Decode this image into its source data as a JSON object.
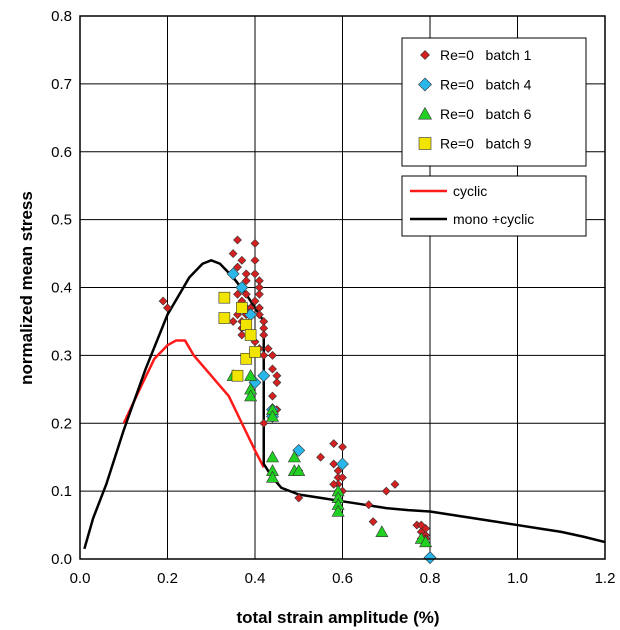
{
  "chart_data": {
    "type": "scatter",
    "xlabel": "total strain amplitude (%)",
    "ylabel": "normalized mean stress",
    "xlim": [
      0,
      1.2
    ],
    "ylim": [
      0,
      0.8
    ],
    "xticks": [
      0.0,
      0.2,
      0.4,
      0.6,
      0.8,
      1.0,
      1.2
    ],
    "yticks": [
      0.0,
      0.1,
      0.2,
      0.3,
      0.4,
      0.5,
      0.6,
      0.7,
      0.8
    ],
    "xtick_labels": [
      "0.0",
      "0.2",
      "0.4",
      "0.6",
      "0.8",
      "1.0",
      "1.2"
    ],
    "ytick_labels": [
      "0.0",
      "0.1",
      "0.2",
      "0.3",
      "0.4",
      "0.5",
      "0.6",
      "0.7",
      "0.8"
    ],
    "grid": true,
    "legend_position": "top-right",
    "scatter_series": [
      {
        "name": "Re=0   batch 1",
        "marker": "diamond",
        "color": "#d42020",
        "x": [
          0.19,
          0.2,
          0.35,
          0.36,
          0.36,
          0.37,
          0.37,
          0.37,
          0.38,
          0.38,
          0.38,
          0.38,
          0.36,
          0.35,
          0.37,
          0.36,
          0.37,
          0.37,
          0.38,
          0.39,
          0.4,
          0.4,
          0.4,
          0.41,
          0.41,
          0.41,
          0.4,
          0.41,
          0.41,
          0.42,
          0.42,
          0.42,
          0.4,
          0.41,
          0.42,
          0.43,
          0.44,
          0.44,
          0.45,
          0.45,
          0.44,
          0.45,
          0.44,
          0.42,
          0.5,
          0.5,
          0.55,
          0.58,
          0.58,
          0.59,
          0.59,
          0.6,
          0.6,
          0.59,
          0.58,
          0.6,
          0.59,
          0.66,
          0.67,
          0.7,
          0.72,
          0.77,
          0.78,
          0.78,
          0.79,
          0.79,
          0.78,
          0.79
        ],
        "y": [
          0.38,
          0.37,
          0.45,
          0.47,
          0.43,
          0.44,
          0.4,
          0.38,
          0.42,
          0.41,
          0.39,
          0.37,
          0.36,
          0.35,
          0.34,
          0.39,
          0.33,
          0.35,
          0.36,
          0.37,
          0.465,
          0.44,
          0.42,
          0.41,
          0.4,
          0.39,
          0.38,
          0.37,
          0.36,
          0.35,
          0.34,
          0.33,
          0.32,
          0.31,
          0.3,
          0.31,
          0.3,
          0.28,
          0.27,
          0.26,
          0.24,
          0.22,
          0.21,
          0.2,
          0.13,
          0.09,
          0.15,
          0.17,
          0.14,
          0.12,
          0.11,
          0.1,
          0.165,
          0.13,
          0.11,
          0.12,
          0.1,
          0.08,
          0.055,
          0.1,
          0.11,
          0.05,
          0.04,
          0.03,
          0.035,
          0.045,
          0.05,
          0.03
        ]
      },
      {
        "name": "Re=0   batch 4",
        "marker": "diamond",
        "color": "#29b6e8",
        "x": [
          0.35,
          0.37,
          0.39,
          0.4,
          0.42,
          0.44,
          0.44,
          0.5,
          0.6,
          0.8
        ],
        "y": [
          0.42,
          0.4,
          0.36,
          0.26,
          0.27,
          0.22,
          0.21,
          0.16,
          0.14,
          0.002
        ]
      },
      {
        "name": "Re=0   batch 6",
        "marker": "triangle",
        "color": "#22d022",
        "x": [
          0.35,
          0.39,
          0.39,
          0.39,
          0.44,
          0.44,
          0.44,
          0.44,
          0.44,
          0.49,
          0.49,
          0.5,
          0.59,
          0.59,
          0.59,
          0.59,
          0.69,
          0.78,
          0.79
        ],
        "y": [
          0.27,
          0.27,
          0.25,
          0.24,
          0.22,
          0.21,
          0.15,
          0.13,
          0.12,
          0.15,
          0.13,
          0.13,
          0.1,
          0.09,
          0.08,
          0.07,
          0.04,
          0.03,
          0.025
        ]
      },
      {
        "name": "Re=0   batch 9",
        "marker": "square",
        "color": "#f0e400",
        "x": [
          0.33,
          0.33,
          0.37,
          0.38,
          0.38,
          0.39,
          0.4,
          0.36
        ],
        "y": [
          0.385,
          0.355,
          0.37,
          0.345,
          0.295,
          0.33,
          0.305,
          0.27
        ]
      }
    ],
    "line_series": [
      {
        "name": "cyclic",
        "color": "#ff1a1a",
        "x": [
          0.1,
          0.14,
          0.17,
          0.2,
          0.22,
          0.24,
          0.26,
          0.3,
          0.34,
          0.37,
          0.4,
          0.42
        ],
        "y": [
          0.2,
          0.255,
          0.295,
          0.315,
          0.322,
          0.322,
          0.3,
          0.27,
          0.24,
          0.2,
          0.16,
          0.135
        ]
      },
      {
        "name": "mono +cyclic",
        "color": "#000000",
        "x": [
          0.01,
          0.03,
          0.06,
          0.1,
          0.15,
          0.2,
          0.25,
          0.28,
          0.3,
          0.32,
          0.35,
          0.38,
          0.4,
          0.41,
          0.42,
          0.42,
          0.43,
          0.44,
          0.46,
          0.5,
          0.55,
          0.6,
          0.65,
          0.7,
          0.75,
          0.8,
          0.85,
          0.9,
          0.95,
          1.0,
          1.05,
          1.1,
          1.15,
          1.2
        ],
        "y": [
          0.015,
          0.06,
          0.11,
          0.19,
          0.28,
          0.36,
          0.415,
          0.435,
          0.44,
          0.435,
          0.415,
          0.39,
          0.37,
          0.36,
          0.35,
          0.14,
          0.13,
          0.12,
          0.105,
          0.095,
          0.09,
          0.085,
          0.08,
          0.075,
          0.072,
          0.07,
          0.065,
          0.06,
          0.055,
          0.05,
          0.045,
          0.04,
          0.033,
          0.025
        ]
      }
    ]
  }
}
